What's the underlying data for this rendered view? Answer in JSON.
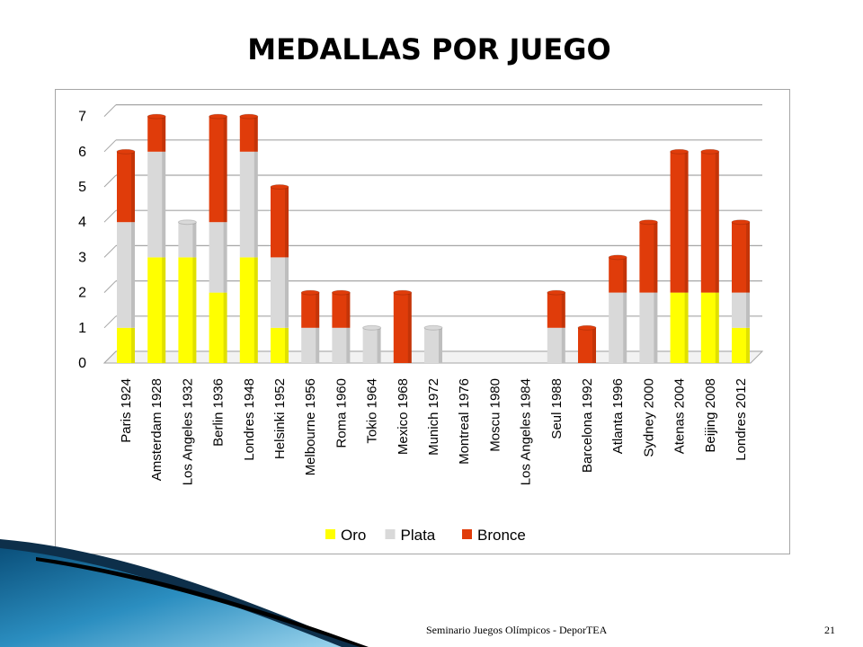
{
  "slide": {
    "title": "MEDALLAS POR JUEGO",
    "footer": "Seminario Juegos Olímpicos - DeporTEA",
    "page_number": "21"
  },
  "colors": {
    "oro": "#ffff00",
    "plata": "#d9d9d9",
    "bronce": "#e03c0a",
    "grid": "#a6a6a6",
    "accent_blue": "#1f7fb3"
  },
  "chart_data": {
    "type": "bar",
    "stacked": true,
    "title": "",
    "xlabel": "",
    "ylabel": "",
    "ylim": [
      0,
      7
    ],
    "yticks": [
      "0",
      "1",
      "2",
      "3",
      "4",
      "5",
      "6",
      "7"
    ],
    "grid": true,
    "legend_position": "bottom",
    "categories": [
      "Paris 1924",
      "Amsterdam 1928",
      "Los Angeles 1932",
      "Berlin 1936",
      "Londres 1948",
      "Helsinki 1952",
      "Melbourne 1956",
      "Roma 1960",
      "Tokio 1964",
      "Mexico 1968",
      "Munich 1972",
      "Montreal 1976",
      "Moscu 1980",
      "Los Angeles 1984",
      "Seul 1988",
      "Barcelona 1992",
      "Atlanta 1996",
      "Sydney 2000",
      "Atenas 2004",
      "Beijing 2008",
      "Londres 2012"
    ],
    "series": [
      {
        "name": "Oro",
        "color": "#ffff00",
        "values": [
          1,
          3,
          3,
          2,
          3,
          1,
          0,
          0,
          0,
          0,
          0,
          0,
          0,
          0,
          0,
          0,
          0,
          0,
          2,
          2,
          1
        ]
      },
      {
        "name": "Plata",
        "color": "#d9d9d9",
        "values": [
          3,
          3,
          1,
          2,
          3,
          2,
          1,
          1,
          1,
          0,
          1,
          0,
          0,
          0,
          1,
          0,
          2,
          2,
          0,
          0,
          1
        ]
      },
      {
        "name": "Bronce",
        "color": "#e03c0a",
        "values": [
          2,
          1,
          0,
          3,
          1,
          2,
          1,
          1,
          0,
          2,
          0,
          0,
          0,
          0,
          1,
          1,
          1,
          2,
          4,
          4,
          2
        ]
      }
    ]
  }
}
